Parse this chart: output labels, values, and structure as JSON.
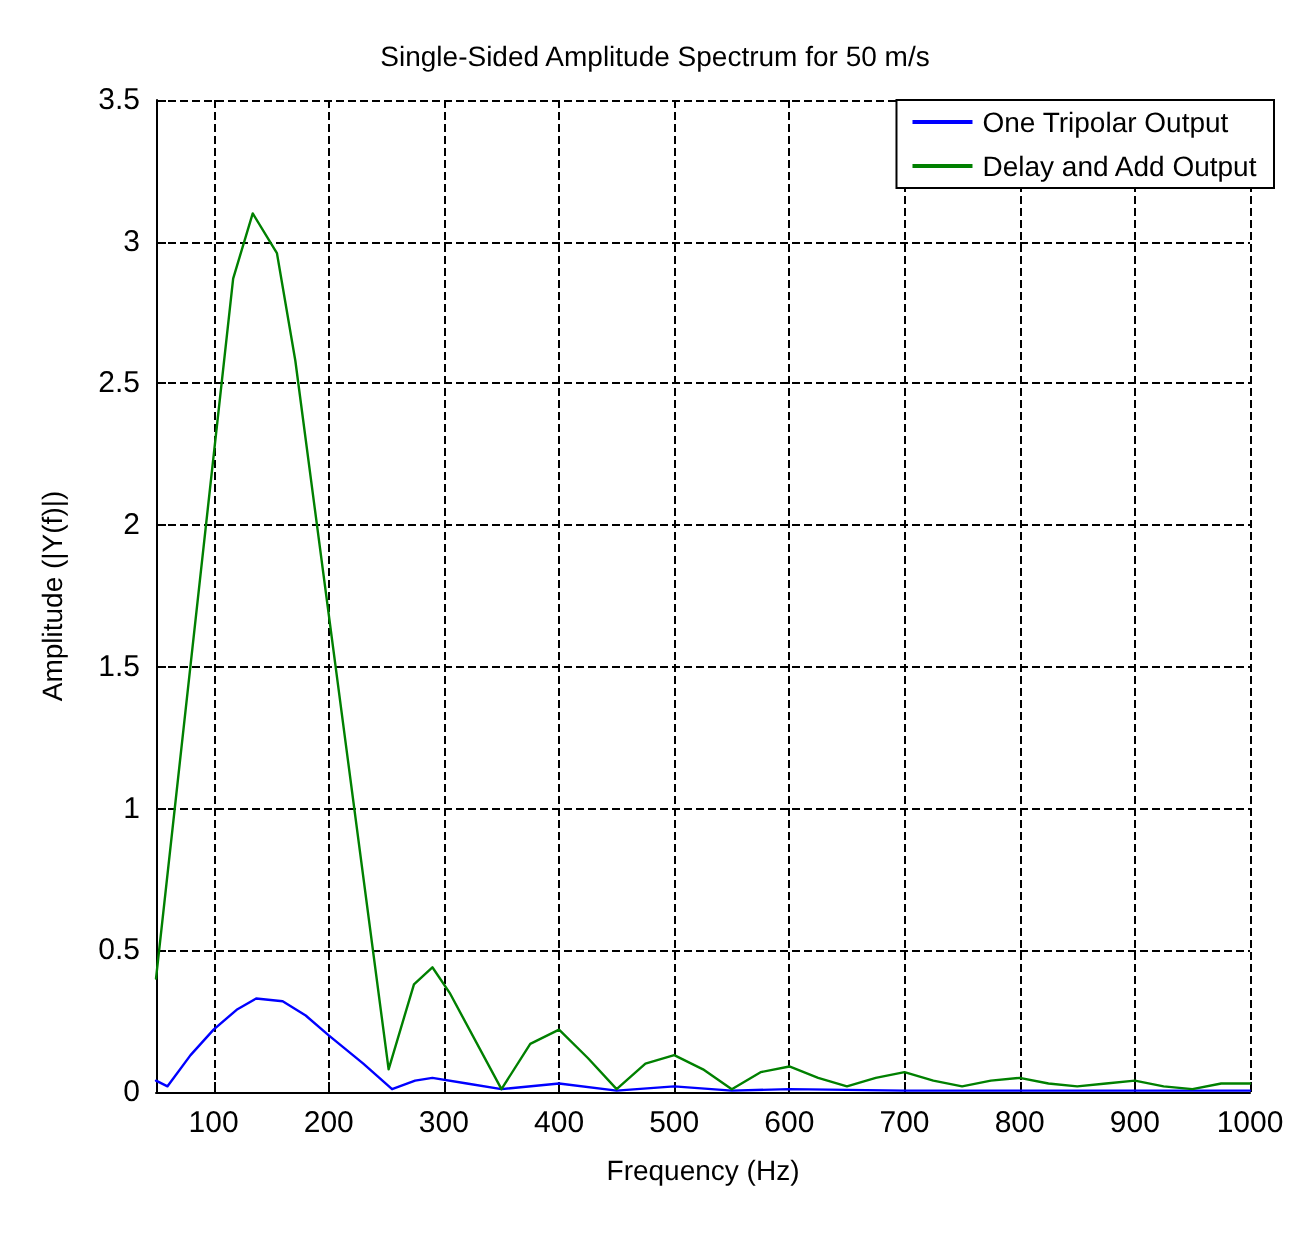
{
  "chart_data": {
    "type": "line",
    "title": "Single-Sided Amplitude Spectrum for 50 m/s",
    "xlabel": "Frequency (Hz)",
    "ylabel": "Amplitude (|Y(f)|)",
    "xlim": [
      50,
      1000
    ],
    "xticks": [
      100,
      200,
      300,
      400,
      500,
      600,
      700,
      800,
      900,
      1000
    ],
    "ylim": [
      0,
      3.5
    ],
    "yticks": [
      0,
      0.5,
      1,
      1.5,
      2,
      2.5,
      3,
      3.5
    ],
    "grid": true,
    "legend": "top right",
    "marker": "none",
    "line_style": "solid",
    "series": [
      {
        "name": "One Tripolar Output",
        "color": "#0000ff",
        "x": [
          50,
          60,
          80,
          100,
          120,
          137,
          160,
          180,
          200,
          230,
          255,
          275,
          290,
          320,
          350,
          400,
          450,
          500,
          550,
          600,
          700,
          800,
          900,
          1000
        ],
        "values": [
          0.04,
          0.02,
          0.13,
          0.22,
          0.29,
          0.33,
          0.32,
          0.27,
          0.2,
          0.1,
          0.01,
          0.04,
          0.05,
          0.03,
          0.01,
          0.03,
          0.005,
          0.02,
          0.005,
          0.01,
          0.005,
          0.005,
          0.005,
          0.005
        ]
      },
      {
        "name": "Delay and Add Output",
        "color": "#008000",
        "x": [
          50,
          117,
          134,
          155,
          171,
          252,
          274,
          290,
          305,
          350,
          375,
          400,
          425,
          450,
          475,
          500,
          525,
          550,
          575,
          600,
          625,
          650,
          675,
          700,
          725,
          750,
          775,
          800,
          825,
          850,
          875,
          900,
          925,
          950,
          975,
          1000
        ],
        "values": [
          0.4,
          2.87,
          3.1,
          2.96,
          2.58,
          0.08,
          0.38,
          0.44,
          0.35,
          0.01,
          0.17,
          0.22,
          0.12,
          0.01,
          0.1,
          0.13,
          0.08,
          0.01,
          0.07,
          0.09,
          0.05,
          0.02,
          0.05,
          0.07,
          0.04,
          0.02,
          0.04,
          0.05,
          0.03,
          0.02,
          0.03,
          0.04,
          0.02,
          0.01,
          0.03,
          0.03
        ]
      }
    ]
  }
}
